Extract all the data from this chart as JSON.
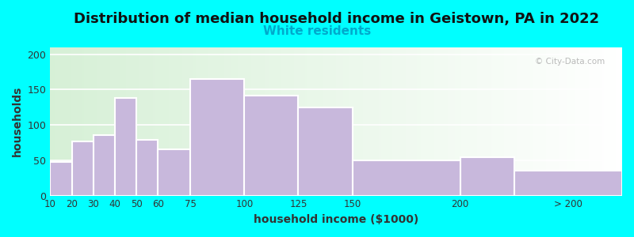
{
  "title": "Distribution of median household income in Geistown, PA in 2022",
  "subtitle": "White residents",
  "xlabel": "household income ($1000)",
  "ylabel": "households",
  "title_fontsize": 13,
  "subtitle_fontsize": 11,
  "label_fontsize": 10,
  "bar_color": "#C8B8DC",
  "bar_edge_color": "#ffffff",
  "background_outer": "#00FFFF",
  "ylim": [
    0,
    210
  ],
  "yticks": [
    0,
    50,
    100,
    150,
    200
  ],
  "tick_labels": [
    "10",
    "20",
    "30",
    "40",
    "50",
    "60",
    "75",
    "100",
    "125",
    "150",
    "200",
    "> 200"
  ],
  "bar_lefts": [
    10,
    20,
    30,
    40,
    50,
    60,
    75,
    100,
    125,
    150,
    200,
    225
  ],
  "bar_widths": [
    10,
    10,
    10,
    10,
    10,
    15,
    25,
    25,
    25,
    50,
    25,
    50
  ],
  "values": [
    48,
    77,
    85,
    138,
    79,
    65,
    165,
    141,
    125,
    50,
    54,
    35
  ],
  "tick_positions": [
    10,
    20,
    30,
    40,
    50,
    60,
    75,
    100,
    125,
    150,
    200,
    250
  ],
  "xlim": [
    10,
    275
  ],
  "watermark": "© City-Data.com"
}
